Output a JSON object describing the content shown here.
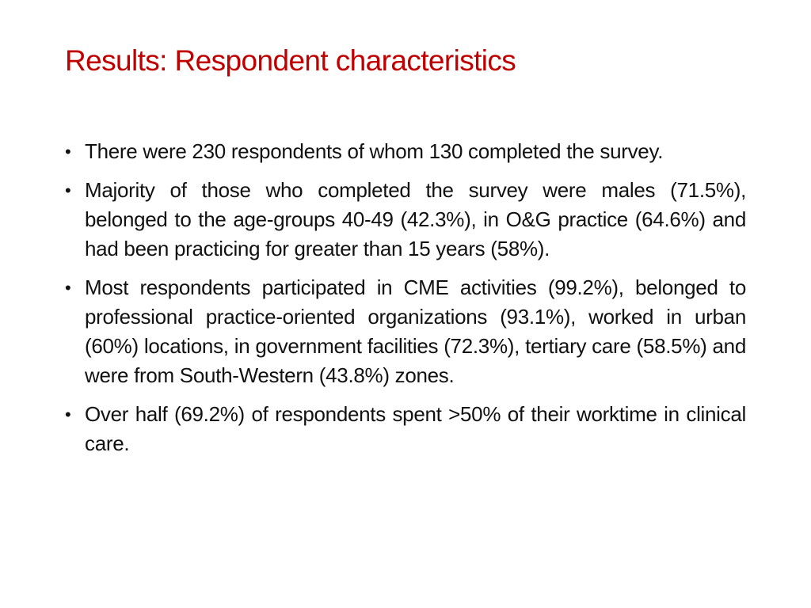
{
  "slide": {
    "title": "Results: Respondent characteristics",
    "bullet_symbol": "•",
    "bullets": [
      "There were 230 respondents of whom 130 completed the survey.",
      "Majority of those who completed the survey were males (71.5%), belonged to the age-groups 40-49 (42.3%), in O&G practice (64.6%) and had been practicing for greater than 15 years (58%).",
      "Most respondents participated in CME activities (99.2%), belonged to professional practice-oriented organizations (93.1%), worked in urban (60%) locations, in government facilities (72.3%), tertiary care (58.5%) and were from South-Western (43.8%) zones.",
      "Over half (69.2%) of respondents spent >50% of their worktime in clinical care."
    ]
  },
  "colors": {
    "title": "#c00000",
    "body_text": "#111111",
    "background": "#ffffff"
  }
}
